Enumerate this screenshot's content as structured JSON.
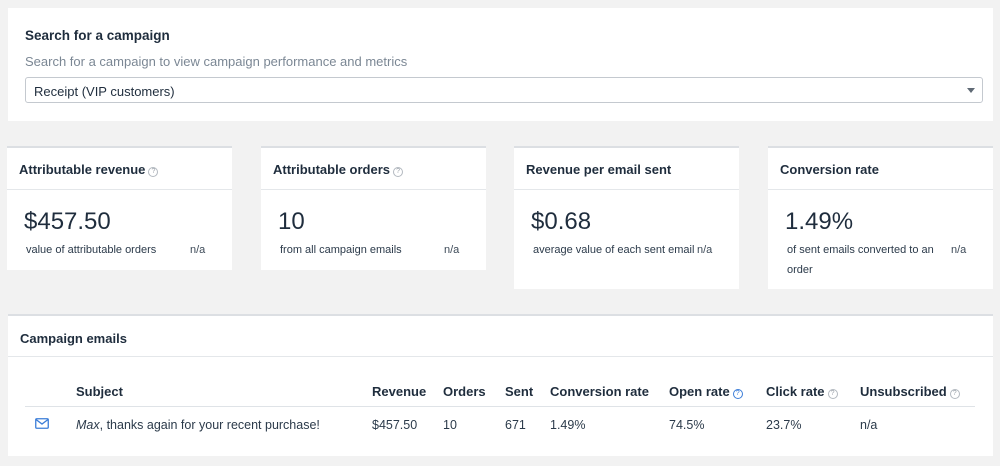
{
  "search": {
    "title": "Search for a campaign",
    "description": "Search for a campaign to view campaign performance and metrics",
    "selected": "Receipt (VIP customers)"
  },
  "metrics": [
    {
      "title": "Attributable revenue",
      "help": true,
      "value": "$457.50",
      "sub": "value of attributable orders",
      "comparison": "n/a"
    },
    {
      "title": "Attributable orders",
      "help": true,
      "value": "10",
      "sub": "from all campaign emails",
      "comparison": "n/a"
    },
    {
      "title": "Revenue per email sent",
      "help": false,
      "value": "$0.68",
      "sub": "average value of each sent email",
      "comparison": "n/a"
    },
    {
      "title": "Conversion rate",
      "help": false,
      "value": "1.49%",
      "sub": "of sent emails converted to an order",
      "comparison": "n/a"
    }
  ],
  "emails": {
    "title": "Campaign emails",
    "columns": {
      "subject": "Subject",
      "revenue": "Revenue",
      "orders": "Orders",
      "sent": "Sent",
      "conversion": "Conversion rate",
      "open": "Open rate",
      "click": "Click rate",
      "unsubscribed": "Unsubscribed"
    },
    "rows": [
      {
        "icon": "mail-icon",
        "subject_name": "Max",
        "subject_rest": ", thanks again for your recent purchase!",
        "revenue": "$457.50",
        "orders": "10",
        "sent": "671",
        "conversion": "1.49%",
        "open": "74.5%",
        "click": "23.7%",
        "unsubscribed": "n/a"
      }
    ]
  },
  "icons": {
    "help": "?"
  },
  "colors": {
    "background": "#f2f2f2",
    "card": "#ffffff",
    "accent_help": "#3b7dd8"
  }
}
